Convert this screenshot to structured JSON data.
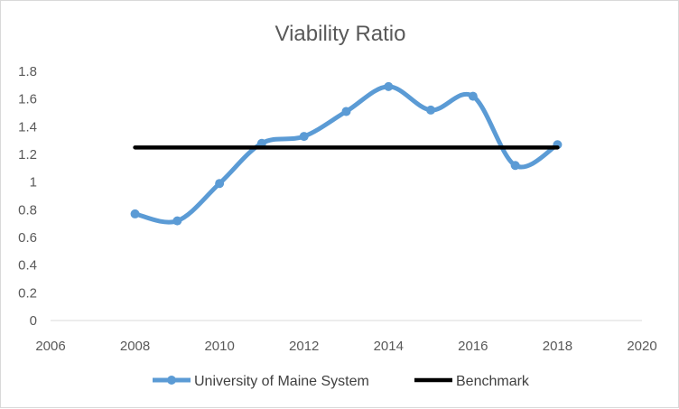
{
  "chart_data": {
    "type": "line",
    "title": "Viability Ratio",
    "xlabel": "",
    "ylabel": "",
    "xlim": [
      2006,
      2020
    ],
    "ylim": [
      0,
      1.8
    ],
    "x_ticks": [
      "2006",
      "2008",
      "2010",
      "2012",
      "2014",
      "2016",
      "2018",
      "2020"
    ],
    "y_ticks": [
      "0",
      "0.2",
      "0.4",
      "0.6",
      "0.8",
      "1",
      "1.2",
      "1.4",
      "1.6",
      "1.8"
    ],
    "grid": false,
    "legend_position": "bottom",
    "series": [
      {
        "name": "University of Maine System",
        "color": "#5b9bd5",
        "smooth": true,
        "markers": true,
        "x": [
          2008,
          2009,
          2010,
          2011,
          2012,
          2013,
          2014,
          2015,
          2016,
          2017,
          2018
        ],
        "values": [
          0.77,
          0.72,
          0.99,
          1.28,
          1.33,
          1.51,
          1.69,
          1.52,
          1.62,
          1.12,
          1.27
        ]
      },
      {
        "name": "Benchmark",
        "color": "#000000",
        "smooth": false,
        "markers": false,
        "x": [
          2008,
          2018
        ],
        "values": [
          1.25,
          1.25
        ]
      }
    ]
  }
}
